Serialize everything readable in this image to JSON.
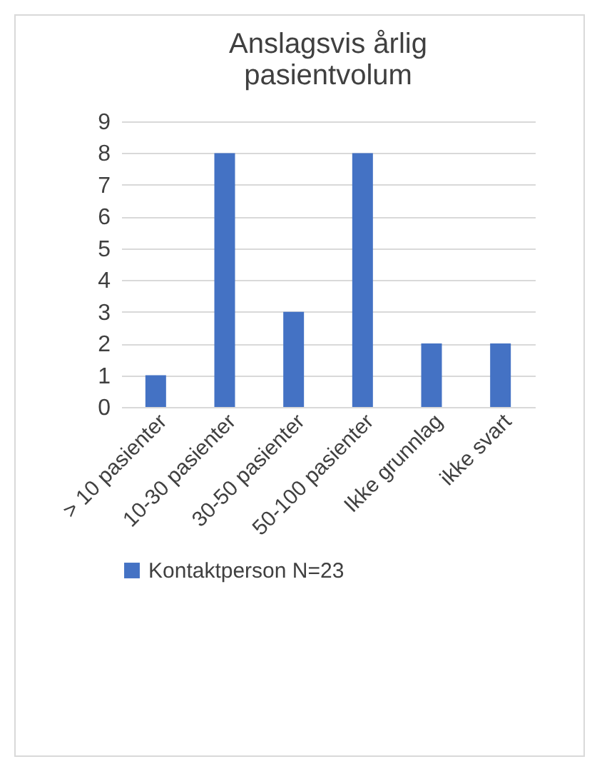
{
  "chart_data": {
    "type": "bar",
    "title": "Anslagsvis årlig\npasientvolum",
    "categories": [
      "> 10 pasienter",
      "10-30 pasienter",
      "30-50 pasienter",
      "50-100 pasienter",
      "Ikke grunnlag",
      "ikke svart"
    ],
    "series": [
      {
        "name": "Kontaktperson N=23",
        "color": "#4472c4",
        "values": [
          1,
          8,
          3,
          8,
          2,
          2
        ]
      }
    ],
    "ylim": [
      0,
      9
    ],
    "yticks": [
      0,
      1,
      2,
      3,
      4,
      5,
      6,
      7,
      8,
      9
    ],
    "grid": "y",
    "legend": "bottom"
  }
}
